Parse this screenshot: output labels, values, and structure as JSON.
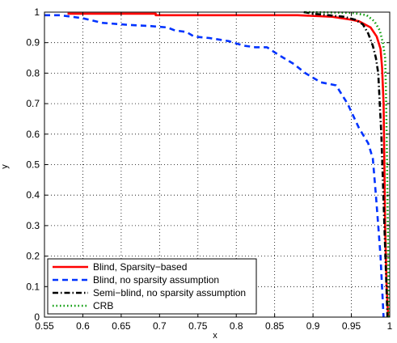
{
  "chart_data": {
    "type": "line",
    "xlabel": "x",
    "ylabel": "y",
    "xlim": [
      0.55,
      1.0
    ],
    "ylim": [
      0,
      1
    ],
    "xticks": [
      "0.55",
      "0.6",
      "0.65",
      "0.7",
      "0.75",
      "0.8",
      "0.85",
      "0.9",
      "0.95",
      "1"
    ],
    "yticks": [
      "0",
      "0.1",
      "0.2",
      "0.3",
      "0.4",
      "0.5",
      "0.6",
      "0.7",
      "0.8",
      "0.9",
      "1"
    ],
    "grid": true,
    "legend_position": "bottom-left",
    "series": [
      {
        "name": "Blind, Sparsity−based",
        "color": "#ff0000",
        "dash": "solid",
        "points": [
          [
            0.58,
            0.995
          ],
          [
            0.695,
            0.995
          ],
          [
            0.695,
            0.99
          ],
          [
            0.88,
            0.99
          ],
          [
            0.925,
            0.985
          ],
          [
            0.95,
            0.975
          ],
          [
            0.96,
            0.97
          ],
          [
            0.975,
            0.95
          ],
          [
            0.983,
            0.92
          ],
          [
            0.988,
            0.88
          ],
          [
            0.99,
            0.82
          ],
          [
            0.992,
            0.7
          ],
          [
            0.993,
            0.5
          ],
          [
            0.994,
            0.3
          ],
          [
            0.996,
            0.1
          ],
          [
            0.998,
            0.0
          ]
        ]
      },
      {
        "name": "Blind, no sparsity assumption",
        "color": "#0033ff",
        "dash": "dashed",
        "points": [
          [
            0.55,
            0.99
          ],
          [
            0.57,
            0.99
          ],
          [
            0.6,
            0.98
          ],
          [
            0.625,
            0.965
          ],
          [
            0.66,
            0.958
          ],
          [
            0.685,
            0.955
          ],
          [
            0.71,
            0.95
          ],
          [
            0.72,
            0.94
          ],
          [
            0.735,
            0.935
          ],
          [
            0.745,
            0.92
          ],
          [
            0.765,
            0.915
          ],
          [
            0.79,
            0.905
          ],
          [
            0.81,
            0.89
          ],
          [
            0.825,
            0.885
          ],
          [
            0.84,
            0.885
          ],
          [
            0.855,
            0.86
          ],
          [
            0.875,
            0.83
          ],
          [
            0.89,
            0.8
          ],
          [
            0.91,
            0.77
          ],
          [
            0.93,
            0.76
          ],
          [
            0.945,
            0.7
          ],
          [
            0.96,
            0.62
          ],
          [
            0.972,
            0.57
          ],
          [
            0.978,
            0.52
          ],
          [
            0.982,
            0.4
          ],
          [
            0.985,
            0.3
          ],
          [
            0.988,
            0.2
          ],
          [
            0.99,
            0.1
          ],
          [
            0.992,
            0.0
          ]
        ]
      },
      {
        "name": "Semi−blind, no sparsity assumption",
        "color": "#000000",
        "dash": "dashdot",
        "points": [
          [
            0.888,
            1.0
          ],
          [
            0.9,
            0.995
          ],
          [
            0.92,
            0.99
          ],
          [
            0.94,
            0.985
          ],
          [
            0.955,
            0.975
          ],
          [
            0.965,
            0.96
          ],
          [
            0.972,
            0.93
          ],
          [
            0.978,
            0.89
          ],
          [
            0.982,
            0.85
          ],
          [
            0.985,
            0.8
          ],
          [
            0.987,
            0.7
          ],
          [
            0.989,
            0.6
          ],
          [
            0.991,
            0.45
          ],
          [
            0.993,
            0.3
          ],
          [
            0.995,
            0.15
          ],
          [
            0.997,
            0.0
          ]
        ]
      },
      {
        "name": "CRB",
        "color": "#009900",
        "dash": "dotted",
        "points": [
          [
            0.89,
            1.0
          ],
          [
            0.95,
            0.998
          ],
          [
            0.97,
            0.99
          ],
          [
            0.98,
            0.97
          ],
          [
            0.987,
            0.94
          ],
          [
            0.991,
            0.9
          ],
          [
            0.994,
            0.85
          ],
          [
            0.995,
            0.75
          ],
          [
            0.996,
            0.6
          ],
          [
            0.997,
            0.4
          ],
          [
            0.998,
            0.2
          ],
          [
            0.999,
            0.0
          ]
        ]
      }
    ]
  }
}
